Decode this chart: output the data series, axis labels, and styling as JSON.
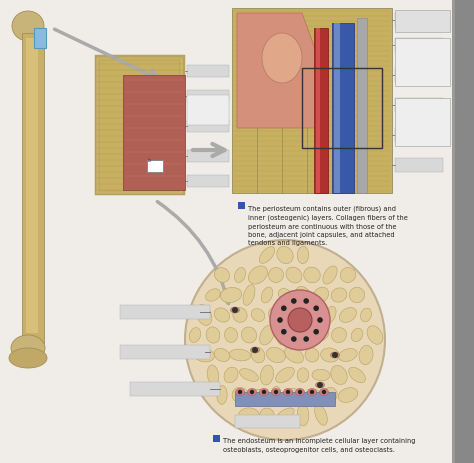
{
  "bg_color": "#f0ede8",
  "bone_tan": "#d4b87a",
  "bone_dark": "#b8954e",
  "bone_light": "#e8d4a0",
  "marrow_red": "#b05050",
  "marrow_pink": "#c8706a",
  "periosteum_bg": "#d4b870",
  "periosteum_line": "#8B7040",
  "vessel_red": "#b03030",
  "vessel_blue": "#4060b0",
  "vessel_blue2": "#6080c8",
  "pink_tissue": "#d4907a",
  "circle_bg": "#e8d8b8",
  "cell_bg": "#e0cc98",
  "osteon_pink": "#d89090",
  "osteon_dark": "#b06060",
  "gray_box": "#c8c8c8",
  "gray_box2": "#d8d8d8",
  "white_box": "#eeeeee",
  "arrow_gray": "#aaaaaa",
  "label_blue": "#3355aa",
  "right_strip": "#999999",
  "text_color": "#222222",
  "periosteum_text_a": "The periosteum contains outer (fibrous) and\ninner (osteogenic) layers. Collagen fibers of the\nperiosteum are continuous with those of the\nbone, adjacent joint capsules, and attached\ntendons and ligaments.",
  "endosteum_text_b": "The endosteum is an incomplete cellular layer containing\nosteoblasts, osteoprogenitor cells, and osteoclasts."
}
